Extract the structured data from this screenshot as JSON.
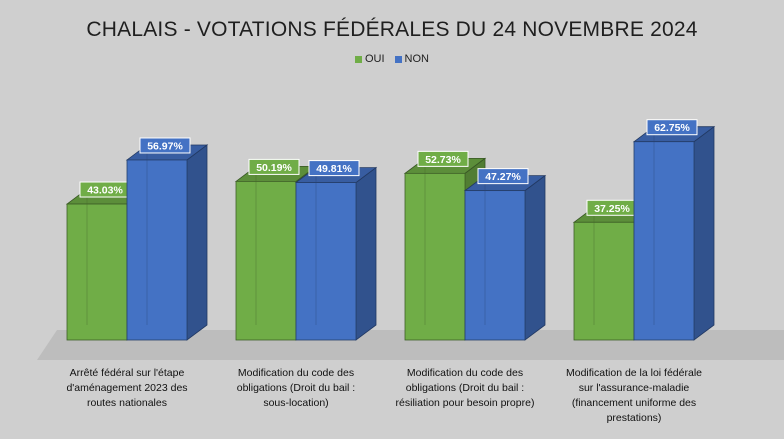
{
  "chart_data": {
    "type": "bar",
    "title": "CHALAIS - VOTATIONS FÉDÉRALES DU 24 NOVEMBRE 2024",
    "xlabel": "",
    "ylabel": "",
    "ylim": [
      0,
      70
    ],
    "grid": false,
    "legend_position": "top",
    "categories": [
      [
        "Arrêté fédéral sur l'étape",
        "d'aménagement 2023 des",
        "routes nationales"
      ],
      [
        "Modification du code des",
        "obligations (Droit du bail :",
        "sous-location)"
      ],
      [
        "Modification du code des",
        "obligations (Droit du bail :",
        "résiliation pour besoin propre)"
      ],
      [
        "Modification de la loi fédérale",
        "sur l'assurance-maladie",
        "(financement uniforme des",
        "prestations)"
      ]
    ],
    "series": [
      {
        "name": "OUI",
        "color": "#70ad47",
        "values": [
          43.03,
          50.19,
          52.73,
          37.25
        ],
        "labels": [
          "43.03%",
          "50.19%",
          "52.73%",
          "37.25%"
        ]
      },
      {
        "name": "NON",
        "color": "#4472c4",
        "values": [
          56.97,
          49.81,
          47.27,
          62.75
        ],
        "labels": [
          "56.97%",
          "49.81%",
          "47.27%",
          "62.75%"
        ]
      }
    ]
  }
}
